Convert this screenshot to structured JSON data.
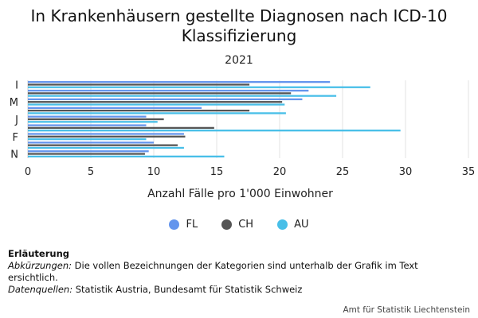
{
  "chart_data": {
    "type": "bar",
    "orientation": "horizontal",
    "title": "In Krankenhäusern gestellte Diagnosen nach ICD-10 Klassifizierung",
    "subtitle": "2021",
    "xlabel": "Anzahl Fälle pro 1'000 Einwohner",
    "ylabel": "",
    "xlim": [
      0,
      35
    ],
    "xticks": [
      0,
      5,
      10,
      15,
      20,
      25,
      30,
      35
    ],
    "categories": [
      "I",
      "",
      "M",
      "",
      "J",
      "",
      "F",
      "",
      "N"
    ],
    "series": [
      {
        "name": "FL",
        "color": "#6495ed",
        "values": [
          24.0,
          22.3,
          21.8,
          13.8,
          9.4,
          9.4,
          12.4,
          10.0,
          9.6
        ]
      },
      {
        "name": "CH",
        "color": "#555555",
        "values": [
          17.6,
          20.9,
          20.2,
          17.6,
          10.8,
          14.8,
          12.5,
          11.9,
          9.3
        ]
      },
      {
        "name": "AU",
        "color": "#48bfe8",
        "values": [
          27.2,
          24.5,
          20.4,
          20.5,
          10.3,
          29.6,
          9.4,
          12.4,
          15.6
        ]
      }
    ],
    "grid": "vertical",
    "legend": "bottom"
  },
  "notes": {
    "heading": "Erläuterung",
    "abbr_label": "Abkürzungen:",
    "abbr_text": " Die vollen Bezeichnungen der Kategorien sind unterhalb der Grafik im Text ersichtlich.",
    "sources_label": "Datenquellen:",
    "sources_text": " Statistik Austria, Bundesamt für Statistik Schweiz"
  },
  "source_credit": "Amt für Statistik Liechtenstein"
}
